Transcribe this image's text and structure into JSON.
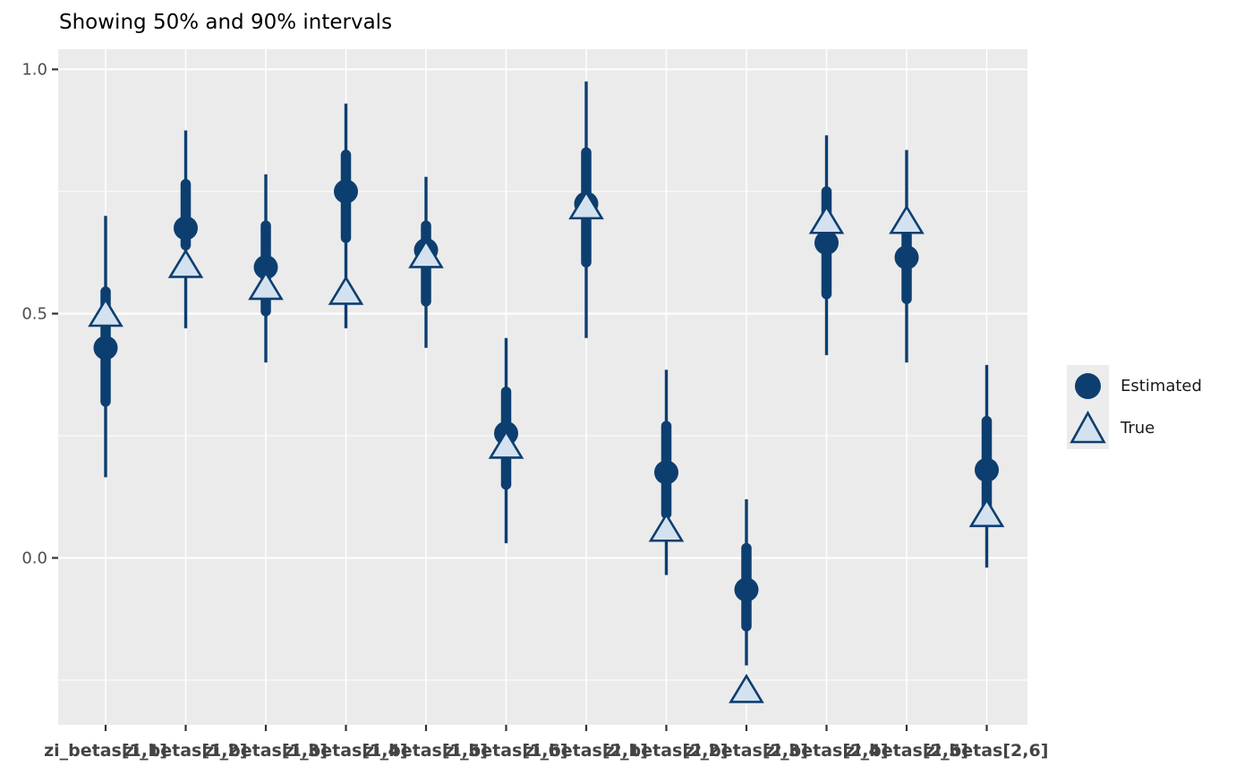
{
  "chart_data": {
    "type": "interval",
    "title": "Showing 50% and 90% intervals",
    "x_categories": [
      "zi_betas[1,1]",
      "zi_betas[1,2]",
      "zi_betas[1,3]",
      "zi_betas[1,4]",
      "zi_betas[1,5]",
      "zi_betas[1,6]",
      "zi_betas[2,1]",
      "zi_betas[2,2]",
      "zi_betas[2,3]",
      "zi_betas[2,4]",
      "zi_betas[2,5]",
      "zi_betas[2,6]"
    ],
    "y_ticks": {
      "values": [
        1.0,
        0.5,
        0.0
      ],
      "labels": [
        "1.0",
        "0.5",
        "0.0"
      ]
    },
    "y_minor_breaks": [
      0.75,
      0.25,
      -0.25
    ],
    "ylim": [
      -0.34,
      1.04
    ],
    "grid": "on",
    "legend": {
      "position": "right",
      "items": [
        {
          "label": "Estimated",
          "marker": "circle-icon"
        },
        {
          "label": "True",
          "marker": "triangle-icon"
        }
      ]
    },
    "series": [
      {
        "name": "zi_betas[1,1]",
        "estimated_median": 0.43,
        "interval_50": [
          0.32,
          0.545
        ],
        "interval_90": [
          0.165,
          0.7
        ],
        "true_value": 0.5
      },
      {
        "name": "zi_betas[1,2]",
        "estimated_median": 0.675,
        "interval_50": [
          0.64,
          0.765
        ],
        "interval_90": [
          0.47,
          0.875
        ],
        "true_value": 0.6
      },
      {
        "name": "zi_betas[1,3]",
        "estimated_median": 0.595,
        "interval_50": [
          0.505,
          0.68
        ],
        "interval_90": [
          0.4,
          0.785
        ],
        "true_value": 0.555
      },
      {
        "name": "zi_betas[1,4]",
        "estimated_median": 0.75,
        "interval_50": [
          0.655,
          0.825
        ],
        "interval_90": [
          0.47,
          0.93
        ],
        "true_value": 0.545
      },
      {
        "name": "zi_betas[1,5]",
        "estimated_median": 0.63,
        "interval_50": [
          0.525,
          0.68
        ],
        "interval_90": [
          0.43,
          0.78
        ],
        "true_value": 0.62
      },
      {
        "name": "zi_betas[1,6]",
        "estimated_median": 0.255,
        "interval_50": [
          0.15,
          0.34
        ],
        "interval_90": [
          0.03,
          0.45
        ],
        "true_value": 0.23
      },
      {
        "name": "zi_betas[2,1]",
        "estimated_median": 0.725,
        "interval_50": [
          0.605,
          0.83
        ],
        "interval_90": [
          0.45,
          0.975
        ],
        "true_value": 0.72
      },
      {
        "name": "zi_betas[2,2]",
        "estimated_median": 0.175,
        "interval_50": [
          0.09,
          0.27
        ],
        "interval_90": [
          -0.035,
          0.385
        ],
        "true_value": 0.06
      },
      {
        "name": "zi_betas[2,3]",
        "estimated_median": -0.065,
        "interval_50": [
          -0.14,
          0.02
        ],
        "interval_90": [
          -0.22,
          0.12
        ],
        "true_value": -0.27
      },
      {
        "name": "zi_betas[2,4]",
        "estimated_median": 0.645,
        "interval_50": [
          0.54,
          0.75
        ],
        "interval_90": [
          0.415,
          0.865
        ],
        "true_value": 0.69
      },
      {
        "name": "zi_betas[2,5]",
        "estimated_median": 0.615,
        "interval_50": [
          0.53,
          0.68
        ],
        "interval_90": [
          0.4,
          0.835
        ],
        "true_value": 0.69
      },
      {
        "name": "zi_betas[2,6]",
        "estimated_median": 0.18,
        "interval_50": [
          0.1,
          0.28
        ],
        "interval_90": [
          -0.02,
          0.395
        ],
        "true_value": 0.09
      }
    ],
    "colors": {
      "estimated_dark": "#0d3e70",
      "true_fill": "#d4e2ef",
      "panel_background": "#ebebeb",
      "gridline": "#ffffff",
      "tick_mark": "#333333",
      "y_tick_text": "#4d4d4d",
      "x_tick_text": "#444444",
      "legend_key_background": "#ececec"
    }
  }
}
